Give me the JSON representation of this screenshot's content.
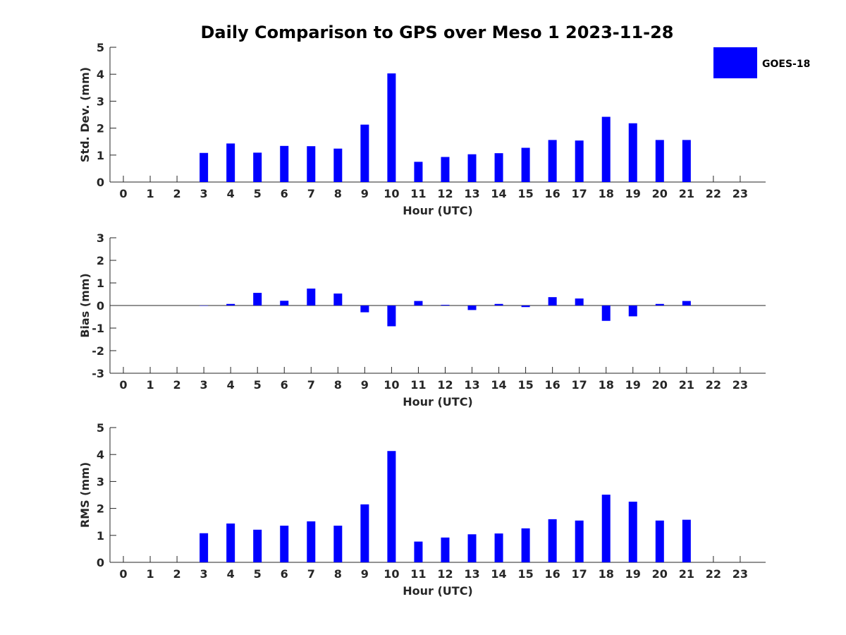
{
  "colors": {
    "series": "#0000ff",
    "axis": "#262626"
  },
  "legend": {
    "label": "GOES-18",
    "placement": "top-right"
  },
  "chart_data": [
    {
      "type": "bar",
      "title": "Daily Comparison to GPS over Meso 1 2023-11-28",
      "xlabel": "Hour (UTC)",
      "ylabel": "Std. Dev. (mm)",
      "ylim": [
        0,
        5
      ],
      "yticks": [
        "0",
        "1",
        "2",
        "3",
        "4",
        "5"
      ],
      "categories": [
        "0",
        "1",
        "2",
        "3",
        "4",
        "5",
        "6",
        "7",
        "8",
        "9",
        "10",
        "11",
        "12",
        "13",
        "14",
        "15",
        "16",
        "17",
        "18",
        "19",
        "20",
        "21",
        "22",
        "23"
      ],
      "series": [
        {
          "name": "GOES-18",
          "values": [
            null,
            null,
            null,
            1.08,
            1.43,
            1.09,
            1.34,
            1.33,
            1.24,
            2.13,
            4.03,
            0.75,
            0.93,
            1.03,
            1.07,
            1.27,
            1.56,
            1.54,
            2.42,
            2.18,
            1.56,
            1.56,
            null,
            null
          ]
        }
      ]
    },
    {
      "type": "bar",
      "title": "",
      "xlabel": "Hour (UTC)",
      "ylabel": "Bias (mm)",
      "ylim": [
        -3,
        3
      ],
      "yticks": [
        "-3",
        "-2",
        "-1",
        "0",
        "1",
        "2",
        "3"
      ],
      "categories": [
        "0",
        "1",
        "2",
        "3",
        "4",
        "5",
        "6",
        "7",
        "8",
        "9",
        "10",
        "11",
        "12",
        "13",
        "14",
        "15",
        "16",
        "17",
        "18",
        "19",
        "20",
        "21",
        "22",
        "23"
      ],
      "series": [
        {
          "name": "GOES-18",
          "values": [
            null,
            null,
            null,
            0.0,
            0.07,
            0.56,
            0.21,
            0.75,
            0.53,
            -0.3,
            -0.92,
            0.2,
            0.03,
            -0.2,
            0.07,
            -0.07,
            0.37,
            0.31,
            -0.68,
            -0.48,
            0.07,
            0.2,
            null,
            null
          ]
        }
      ]
    },
    {
      "type": "bar",
      "title": "",
      "xlabel": "Hour (UTC)",
      "ylabel": "RMS (mm)",
      "ylim": [
        0,
        5
      ],
      "yticks": [
        "0",
        "1",
        "2",
        "3",
        "4",
        "5"
      ],
      "categories": [
        "0",
        "1",
        "2",
        "3",
        "4",
        "5",
        "6",
        "7",
        "8",
        "9",
        "10",
        "11",
        "12",
        "13",
        "14",
        "15",
        "16",
        "17",
        "18",
        "19",
        "20",
        "21",
        "22",
        "23"
      ],
      "series": [
        {
          "name": "GOES-18",
          "values": [
            null,
            null,
            null,
            1.08,
            1.44,
            1.21,
            1.36,
            1.52,
            1.36,
            2.15,
            4.13,
            0.77,
            0.92,
            1.04,
            1.07,
            1.26,
            1.6,
            1.55,
            2.51,
            2.25,
            1.55,
            1.58,
            null,
            null
          ]
        }
      ]
    }
  ]
}
